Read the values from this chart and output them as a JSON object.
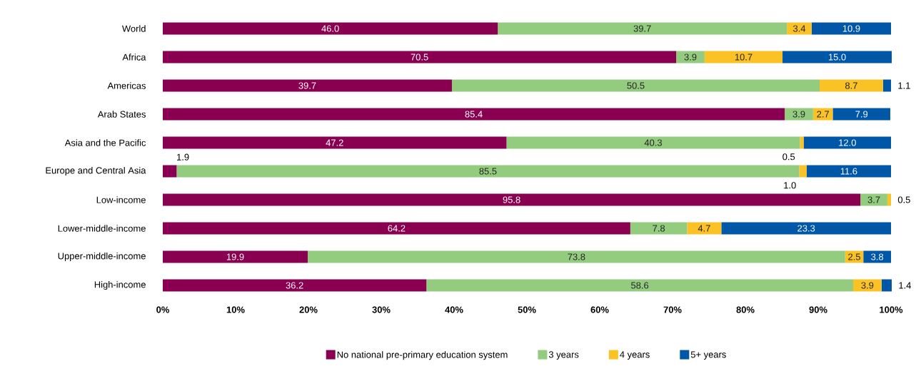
{
  "chart_data": {
    "type": "bar",
    "orientation": "horizontal",
    "stacked": true,
    "categories": [
      "World",
      "Africa",
      "Americas",
      "Arab States",
      "Asia and the Pacific",
      "Europe and Central Asia",
      "Low-income",
      "Lower-middle-income",
      "Upper-middle-income",
      "High-income"
    ],
    "series": [
      {
        "name": "No national pre-primary education system",
        "color": "#8a0050",
        "values": [
          46.0,
          70.5,
          39.7,
          85.4,
          47.2,
          1.9,
          95.8,
          64.2,
          19.9,
          36.2
        ],
        "value_labels": [
          "46.0",
          "70.5",
          "39.7",
          "85.4",
          "47.2",
          "1.9",
          "95.8",
          "64.2",
          "19.9",
          "36.2"
        ]
      },
      {
        "name": "3 years",
        "color": "#93cc7f",
        "values": [
          39.7,
          3.9,
          50.5,
          3.9,
          40.3,
          85.5,
          3.7,
          7.8,
          73.8,
          58.6
        ],
        "value_labels": [
          "39.7",
          "3.9",
          "50.5",
          "3.9",
          "40.3",
          "85.5",
          "3.7",
          "7.8",
          "73.8",
          "58.6"
        ]
      },
      {
        "name": "4 years",
        "color": "#fbc226",
        "values": [
          3.4,
          10.7,
          8.7,
          2.7,
          0.5,
          1.0,
          0.5,
          4.7,
          2.5,
          3.9
        ],
        "value_labels": [
          "3.4",
          "10.7",
          "8.7",
          "2.7",
          "0.5",
          "1.0",
          "0.5",
          "4.7",
          "2.5",
          "3.9"
        ]
      },
      {
        "name": "5+ years",
        "color": "#0057a8",
        "values": [
          10.9,
          15.0,
          1.1,
          7.9,
          12.0,
          11.6,
          null,
          23.3,
          3.8,
          1.4
        ],
        "value_labels": [
          "10.9",
          "15.0",
          "1.1",
          "7.9",
          "12.0",
          "11.6",
          null,
          "23.3",
          "3.8",
          "1.4"
        ]
      }
    ],
    "xlim": [
      0,
      100
    ],
    "xticks": [
      {
        "value": 0,
        "label": "0%"
      },
      {
        "value": 10,
        "label": "10%"
      },
      {
        "value": 20,
        "label": "20%"
      },
      {
        "value": 30,
        "label": "30%"
      },
      {
        "value": 40,
        "label": "40%"
      },
      {
        "value": 50,
        "label": "50%"
      },
      {
        "value": 60,
        "label": "60%"
      },
      {
        "value": 70,
        "label": "70%"
      },
      {
        "value": 80,
        "label": "80%"
      },
      {
        "value": 90,
        "label": "90%"
      },
      {
        "value": 100,
        "label": "100%"
      }
    ],
    "legend": "bottom",
    "grid": false
  }
}
